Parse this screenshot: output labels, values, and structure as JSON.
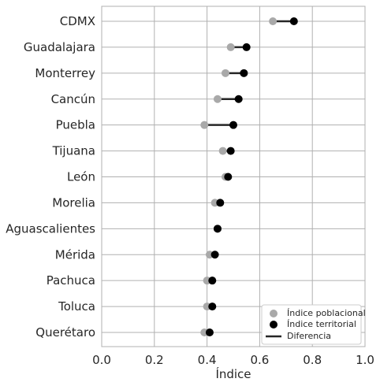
{
  "chart_data": {
    "type": "dumbbell",
    "orientation": "horizontal",
    "xlabel": "Índice",
    "ylabel": "",
    "xlim": [
      0.0,
      1.0
    ],
    "xticks": [
      "0.0",
      "0.2",
      "0.4",
      "0.6",
      "0.8",
      "1.0"
    ],
    "grid": true,
    "legend_position": "lower-right",
    "categories": [
      "CDMX",
      "Guadalajara",
      "Monterrey",
      "Cancún",
      "Puebla",
      "Tijuana",
      "León",
      "Morelia",
      "Aguascalientes",
      "Mérida",
      "Pachuca",
      "Toluca",
      "Querétaro"
    ],
    "series": [
      {
        "name": "Índice poblacional",
        "color": "#a9a9a9",
        "values": [
          0.65,
          0.49,
          0.47,
          0.44,
          0.39,
          0.46,
          0.47,
          0.43,
          0.44,
          0.41,
          0.4,
          0.4,
          0.39
        ]
      },
      {
        "name": "Índice territorial",
        "color": "#000000",
        "values": [
          0.73,
          0.55,
          0.54,
          0.52,
          0.5,
          0.49,
          0.48,
          0.45,
          0.44,
          0.43,
          0.42,
          0.42,
          0.41
        ]
      }
    ],
    "difference_label": "Diferencia",
    "difference_color": "#262626"
  }
}
